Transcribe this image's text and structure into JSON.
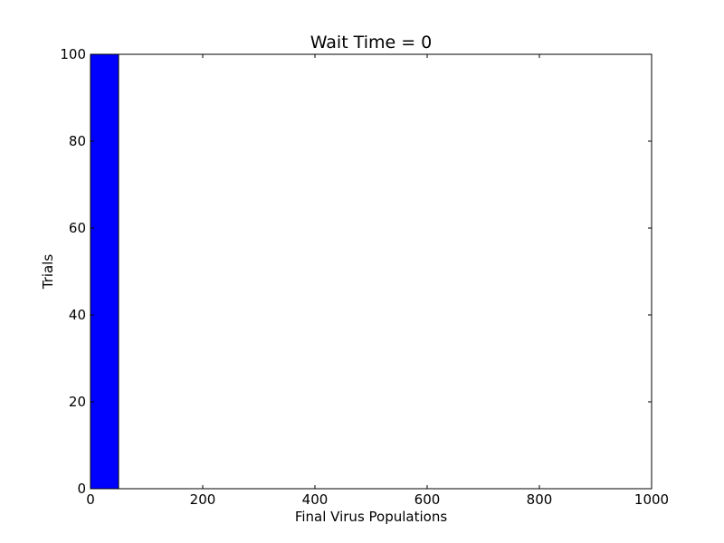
{
  "chart_data": {
    "type": "bar",
    "title": "Wait Time = 0",
    "xlabel": "Final Virus Populations",
    "ylabel": "Trials",
    "xlim": [
      0,
      1000
    ],
    "ylim": [
      0,
      100
    ],
    "grid": false,
    "x_ticks": [
      0,
      200,
      400,
      600,
      800,
      1000
    ],
    "y_ticks": [
      0,
      20,
      40,
      60,
      80,
      100
    ],
    "x_tick_labels": [
      "0",
      "200",
      "400",
      "600",
      "800",
      "1000"
    ],
    "y_tick_labels": [
      "0",
      "20",
      "40",
      "60",
      "80",
      "100"
    ],
    "bins": [
      {
        "x_start": 0,
        "x_end": 50,
        "value": 100
      },
      {
        "x_start": 50,
        "x_end": 100,
        "value": 0
      },
      {
        "x_start": 100,
        "x_end": 150,
        "value": 0
      },
      {
        "x_start": 150,
        "x_end": 200,
        "value": 0
      },
      {
        "x_start": 200,
        "x_end": 250,
        "value": 0
      },
      {
        "x_start": 250,
        "x_end": 300,
        "value": 0
      },
      {
        "x_start": 300,
        "x_end": 350,
        "value": 0
      },
      {
        "x_start": 350,
        "x_end": 400,
        "value": 0
      },
      {
        "x_start": 400,
        "x_end": 450,
        "value": 0
      },
      {
        "x_start": 450,
        "x_end": 500,
        "value": 0
      },
      {
        "x_start": 500,
        "x_end": 550,
        "value": 0
      },
      {
        "x_start": 550,
        "x_end": 600,
        "value": 0
      },
      {
        "x_start": 600,
        "x_end": 650,
        "value": 0
      },
      {
        "x_start": 650,
        "x_end": 700,
        "value": 0
      },
      {
        "x_start": 700,
        "x_end": 750,
        "value": 0
      },
      {
        "x_start": 750,
        "x_end": 800,
        "value": 0
      },
      {
        "x_start": 800,
        "x_end": 850,
        "value": 0
      },
      {
        "x_start": 850,
        "x_end": 900,
        "value": 0
      },
      {
        "x_start": 900,
        "x_end": 950,
        "value": 0
      },
      {
        "x_start": 950,
        "x_end": 1000,
        "value": 0
      }
    ],
    "bar_color": "#0000ff"
  }
}
